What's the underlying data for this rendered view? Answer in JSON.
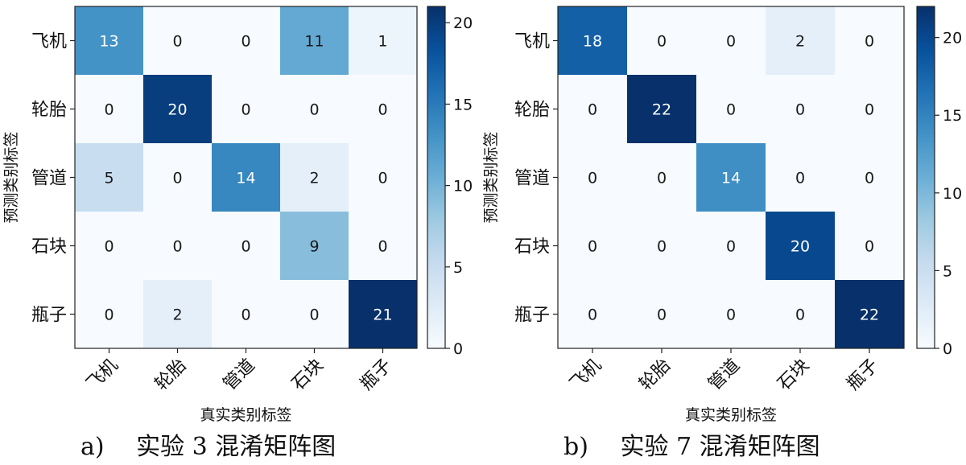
{
  "chart_data": [
    {
      "type": "heatmap",
      "caption": "a)　 实验 3 混淆矩阵图",
      "xlabel": "真实类别标签",
      "ylabel": "预测类别标签",
      "row_labels": [
        "飞机",
        "轮胎",
        "管道",
        "石块",
        "瓶子"
      ],
      "col_labels": [
        "飞机",
        "轮胎",
        "管道",
        "石块",
        "瓶子"
      ],
      "values": [
        [
          13,
          0,
          0,
          11,
          1
        ],
        [
          0,
          20,
          0,
          0,
          0
        ],
        [
          5,
          0,
          14,
          2,
          0
        ],
        [
          0,
          0,
          0,
          9,
          0
        ],
        [
          0,
          2,
          0,
          0,
          21
        ]
      ],
      "colorbar": {
        "min": 0,
        "max": 21,
        "ticks": [
          0,
          5,
          10,
          15,
          20
        ]
      }
    },
    {
      "type": "heatmap",
      "caption": "b)　 实验 7 混淆矩阵图",
      "xlabel": "真实类别标签",
      "ylabel": "预测类别标签",
      "row_labels": [
        "飞机",
        "轮胎",
        "管道",
        "石块",
        "瓶子"
      ],
      "col_labels": [
        "飞机",
        "轮胎",
        "管道",
        "石块",
        "瓶子"
      ],
      "values": [
        [
          18,
          0,
          0,
          2,
          0
        ],
        [
          0,
          22,
          0,
          0,
          0
        ],
        [
          0,
          0,
          14,
          0,
          0
        ],
        [
          0,
          0,
          0,
          20,
          0
        ],
        [
          0,
          0,
          0,
          0,
          22
        ]
      ],
      "colorbar": {
        "min": 0,
        "max": 22,
        "ticks": [
          0,
          5,
          10,
          15,
          20
        ]
      }
    }
  ]
}
